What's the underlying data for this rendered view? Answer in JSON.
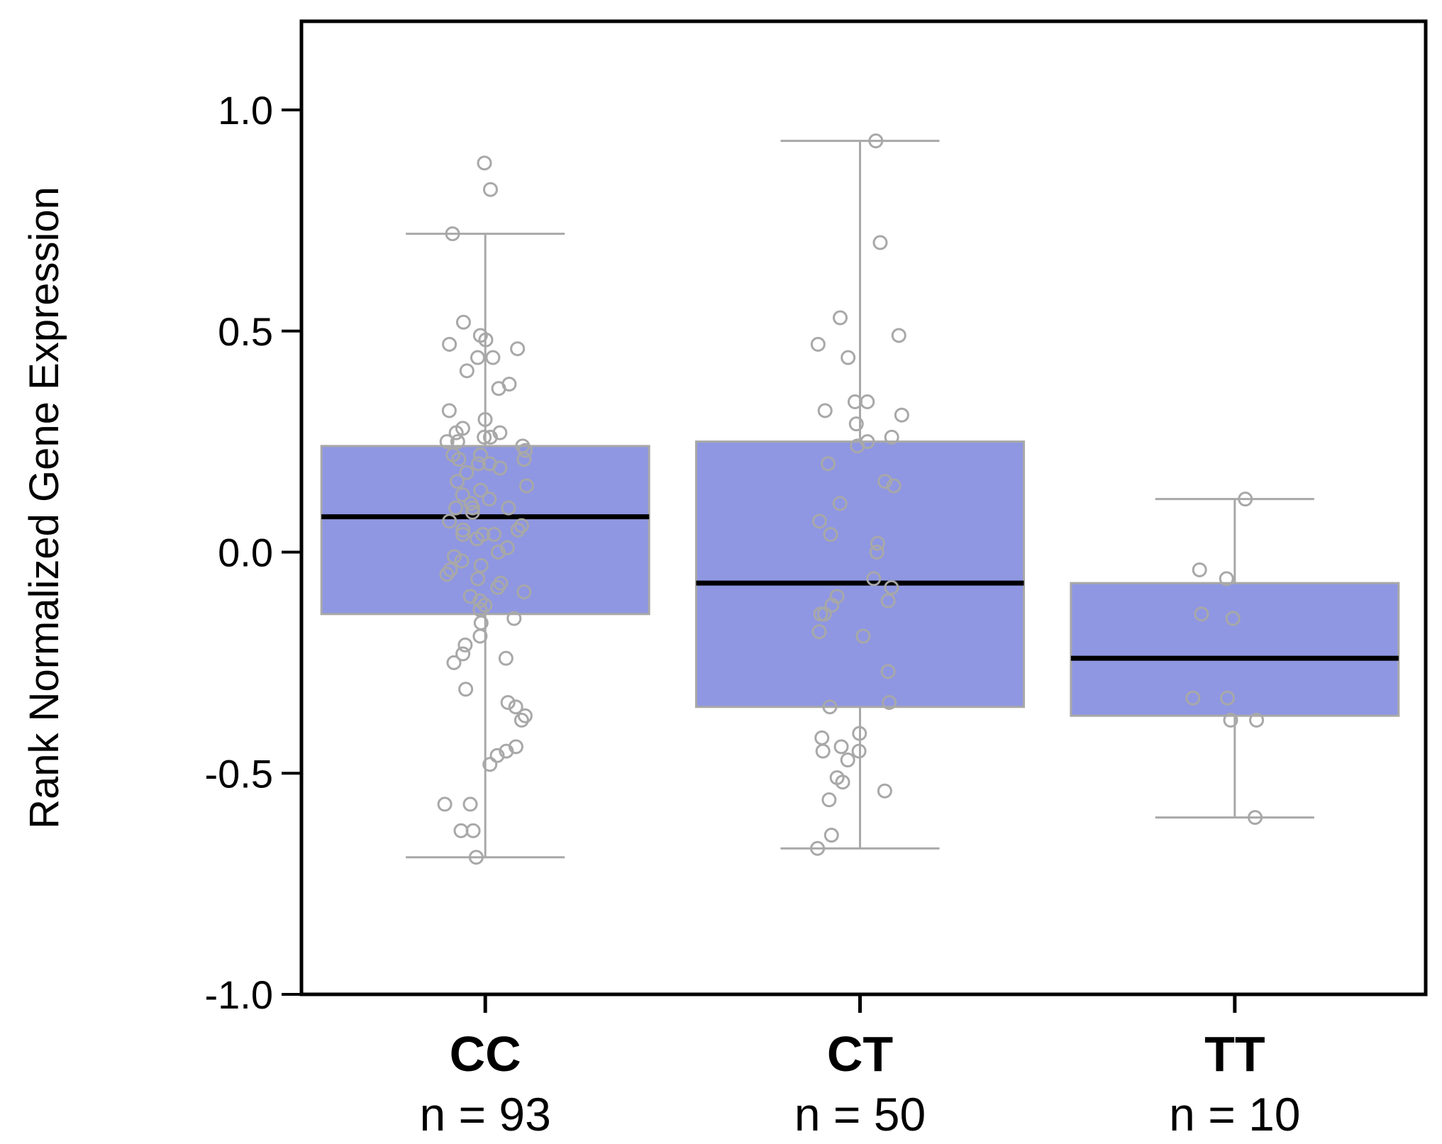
{
  "chart_data": {
    "type": "box",
    "ylabel": "Rank Normalized Gene Expression",
    "xlabel": "",
    "ylim": [
      -1.0,
      1.2
    ],
    "yticks": [
      "1.0",
      "0.5",
      "0.0",
      "-0.5",
      "-1.0"
    ],
    "ytick_values": [
      1.0,
      0.5,
      0.0,
      -0.5,
      -1.0
    ],
    "grid": false,
    "colors": {
      "box_fill": "#8f97e2",
      "box_edge": "#a8a8a8",
      "median": "#000000",
      "whisker": "#a8a8a8",
      "point": "#a8a8a8"
    },
    "groups": [
      {
        "category": "CC",
        "n_label": "n = 93",
        "whisker_low": -0.69,
        "q1": -0.14,
        "median": 0.08,
        "q3": 0.24,
        "whisker_high": 0.72,
        "points": [
          0.88,
          0.82,
          0.72,
          0.52,
          0.49,
          0.48,
          0.47,
          0.46,
          0.44,
          0.44,
          0.41,
          0.38,
          0.37,
          0.32,
          0.3,
          0.28,
          0.27,
          0.27,
          0.26,
          0.26,
          0.25,
          0.25,
          0.24,
          0.23,
          0.22,
          0.22,
          0.21,
          0.21,
          0.2,
          0.2,
          0.19,
          0.18,
          0.16,
          0.15,
          0.14,
          0.13,
          0.12,
          0.11,
          0.1,
          0.1,
          0.1,
          0.09,
          0.07,
          0.06,
          0.05,
          0.05,
          0.04,
          0.04,
          0.04,
          0.03,
          0.01,
          0.0,
          -0.01,
          -0.02,
          -0.03,
          -0.04,
          -0.05,
          -0.06,
          -0.07,
          -0.08,
          -0.09,
          -0.1,
          -0.11,
          -0.12,
          -0.13,
          -0.15,
          -0.16,
          -0.19,
          -0.21,
          -0.23,
          -0.24,
          -0.25,
          -0.31,
          -0.34,
          -0.35,
          -0.37,
          -0.38,
          -0.44,
          -0.45,
          -0.46,
          -0.48,
          -0.57,
          -0.57,
          -0.63,
          -0.63,
          -0.69
        ]
      },
      {
        "category": "CT",
        "n_label": "n = 50",
        "whisker_low": -0.67,
        "q1": -0.35,
        "median": -0.07,
        "q3": 0.25,
        "whisker_high": 0.93,
        "points": [
          0.93,
          0.7,
          0.53,
          0.49,
          0.47,
          0.44,
          0.34,
          0.34,
          0.32,
          0.31,
          0.29,
          0.26,
          0.25,
          0.24,
          0.2,
          0.16,
          0.15,
          0.11,
          0.07,
          0.04,
          0.02,
          0.0,
          -0.06,
          -0.08,
          -0.1,
          -0.11,
          -0.12,
          -0.14,
          -0.14,
          -0.18,
          -0.19,
          -0.27,
          -0.34,
          -0.35,
          -0.41,
          -0.42,
          -0.44,
          -0.45,
          -0.45,
          -0.47,
          -0.51,
          -0.52,
          -0.54,
          -0.56,
          -0.64,
          -0.67
        ]
      },
      {
        "category": "TT",
        "n_label": "n = 10",
        "whisker_low": -0.6,
        "q1": -0.37,
        "median": -0.24,
        "q3": -0.07,
        "whisker_high": 0.12,
        "points": [
          0.12,
          -0.04,
          -0.06,
          -0.14,
          -0.15,
          -0.33,
          -0.33,
          -0.38,
          -0.38,
          -0.6
        ]
      }
    ]
  }
}
